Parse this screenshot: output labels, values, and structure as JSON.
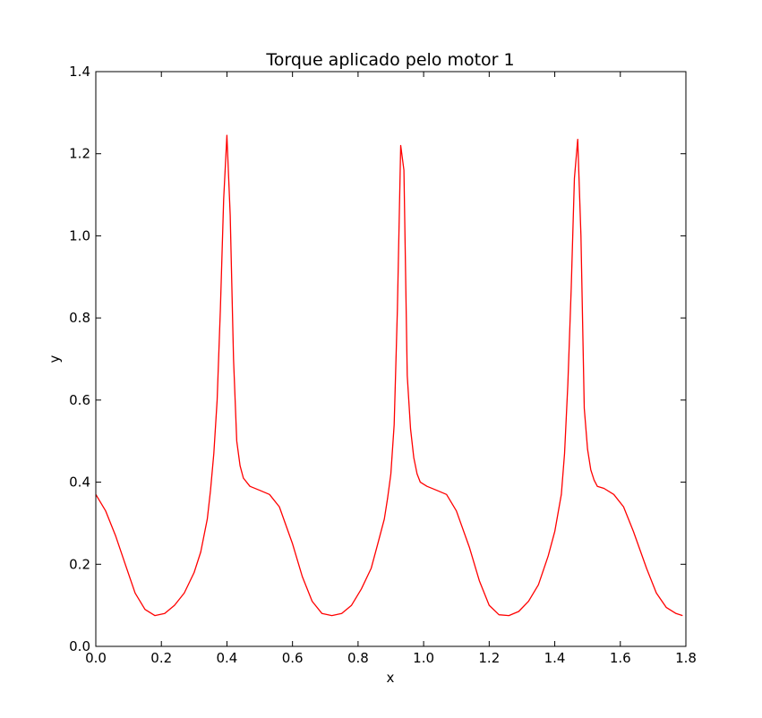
{
  "chart_data": {
    "type": "line",
    "title": "Torque aplicado pelo motor 1",
    "xlabel": "x",
    "ylabel": "y",
    "xlim": [
      0.0,
      1.8
    ],
    "ylim": [
      0.0,
      1.4
    ],
    "x_ticks": [
      "0.0",
      "0.2",
      "0.4",
      "0.6",
      "0.8",
      "1.0",
      "1.2",
      "1.4",
      "1.6",
      "1.8"
    ],
    "y_ticks": [
      "0.0",
      "0.2",
      "0.4",
      "0.6",
      "0.8",
      "1.0",
      "1.2",
      "1.4"
    ],
    "grid": false,
    "series": [
      {
        "color": "#ff0000",
        "x": [
          0.0,
          0.03,
          0.06,
          0.09,
          0.12,
          0.15,
          0.18,
          0.21,
          0.24,
          0.27,
          0.3,
          0.32,
          0.34,
          0.35,
          0.36,
          0.37,
          0.38,
          0.39,
          0.4,
          0.41,
          0.42,
          0.43,
          0.44,
          0.45,
          0.47,
          0.5,
          0.53,
          0.56,
          0.6,
          0.63,
          0.66,
          0.69,
          0.72,
          0.75,
          0.78,
          0.81,
          0.84,
          0.86,
          0.88,
          0.89,
          0.9,
          0.91,
          0.92,
          0.93,
          0.94,
          0.95,
          0.96,
          0.97,
          0.98,
          0.99,
          1.01,
          1.04,
          1.07,
          1.1,
          1.14,
          1.17,
          1.2,
          1.23,
          1.26,
          1.29,
          1.32,
          1.35,
          1.38,
          1.4,
          1.42,
          1.43,
          1.44,
          1.45,
          1.46,
          1.47,
          1.48,
          1.49,
          1.5,
          1.51,
          1.52,
          1.53,
          1.55,
          1.58,
          1.61,
          1.64,
          1.68,
          1.71,
          1.74,
          1.77,
          1.79
        ],
        "y": [
          0.37,
          0.33,
          0.27,
          0.2,
          0.13,
          0.09,
          0.075,
          0.08,
          0.1,
          0.13,
          0.18,
          0.23,
          0.31,
          0.38,
          0.47,
          0.6,
          0.82,
          1.09,
          1.245,
          1.05,
          0.7,
          0.5,
          0.44,
          0.41,
          0.39,
          0.38,
          0.37,
          0.34,
          0.25,
          0.17,
          0.11,
          0.08,
          0.075,
          0.08,
          0.1,
          0.14,
          0.19,
          0.25,
          0.31,
          0.36,
          0.42,
          0.54,
          0.82,
          1.22,
          1.16,
          0.66,
          0.53,
          0.46,
          0.42,
          0.4,
          0.39,
          0.38,
          0.37,
          0.33,
          0.24,
          0.16,
          0.1,
          0.077,
          0.075,
          0.085,
          0.11,
          0.15,
          0.22,
          0.28,
          0.37,
          0.47,
          0.64,
          0.87,
          1.14,
          1.235,
          1.0,
          0.58,
          0.48,
          0.43,
          0.405,
          0.39,
          0.385,
          0.37,
          0.34,
          0.28,
          0.19,
          0.13,
          0.095,
          0.08,
          0.075
        ]
      }
    ]
  }
}
